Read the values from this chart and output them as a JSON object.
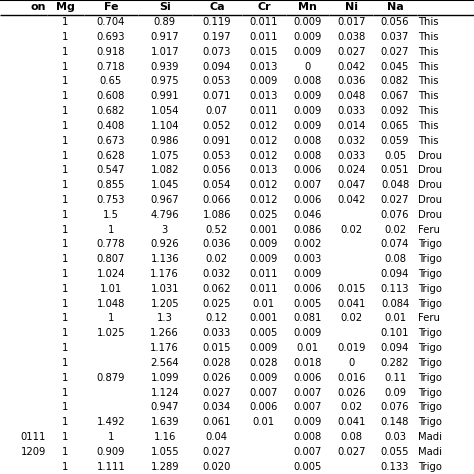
{
  "headers": [
    "on",
    "Mg",
    "Fe",
    "Si",
    "Ca",
    "Cr",
    "Mn",
    "Ni",
    "Na",
    ""
  ],
  "rows": [
    [
      "",
      "1",
      "0.704",
      "0.89",
      "0.119",
      "0.011",
      "0.009",
      "0.017",
      "0.056",
      "This"
    ],
    [
      "",
      "1",
      "0.693",
      "0.917",
      "0.197",
      "0.011",
      "0.009",
      "0.038",
      "0.037",
      "This"
    ],
    [
      "",
      "1",
      "0.918",
      "1.017",
      "0.073",
      "0.015",
      "0.009",
      "0.027",
      "0.027",
      "This"
    ],
    [
      "",
      "1",
      "0.718",
      "0.939",
      "0.094",
      "0.013",
      "0",
      "0.042",
      "0.045",
      "This"
    ],
    [
      "",
      "1",
      "0.65",
      "0.975",
      "0.053",
      "0.009",
      "0.008",
      "0.036",
      "0.082",
      "This"
    ],
    [
      "",
      "1",
      "0.608",
      "0.991",
      "0.071",
      "0.013",
      "0.009",
      "0.048",
      "0.067",
      "This"
    ],
    [
      "",
      "1",
      "0.682",
      "1.054",
      "0.07",
      "0.011",
      "0.009",
      "0.033",
      "0.092",
      "This"
    ],
    [
      "",
      "1",
      "0.408",
      "1.104",
      "0.052",
      "0.012",
      "0.009",
      "0.014",
      "0.065",
      "This"
    ],
    [
      "",
      "1",
      "0.673",
      "0.986",
      "0.091",
      "0.012",
      "0.008",
      "0.032",
      "0.059",
      "This"
    ],
    [
      "",
      "1",
      "0.628",
      "1.075",
      "0.053",
      "0.012",
      "0.008",
      "0.033",
      "0.05",
      "Drou"
    ],
    [
      "",
      "1",
      "0.547",
      "1.082",
      "0.056",
      "0.013",
      "0.006",
      "0.024",
      "0.051",
      "Drou"
    ],
    [
      "",
      "1",
      "0.855",
      "1.045",
      "0.054",
      "0.012",
      "0.007",
      "0.047",
      "0.048",
      "Drou"
    ],
    [
      "",
      "1",
      "0.753",
      "0.967",
      "0.066",
      "0.012",
      "0.006",
      "0.042",
      "0.027",
      "Drou"
    ],
    [
      "",
      "1",
      "1.5",
      "4.796",
      "1.086",
      "0.025",
      "0.046",
      "",
      "0.076",
      "Drou"
    ],
    [
      "",
      "1",
      "1",
      "3",
      "0.52",
      "0.001",
      "0.086",
      "0.02",
      "0.02",
      "Feru"
    ],
    [
      "",
      "1",
      "0.778",
      "0.926",
      "0.036",
      "0.009",
      "0.002",
      "",
      "0.074",
      "Trigo"
    ],
    [
      "",
      "1",
      "0.807",
      "1.136",
      "0.02",
      "0.009",
      "0.003",
      "",
      "0.08",
      "Trigo"
    ],
    [
      "",
      "1",
      "1.024",
      "1.176",
      "0.032",
      "0.011",
      "0.009",
      "",
      "0.094",
      "Trigo"
    ],
    [
      "",
      "1",
      "1.01",
      "1.031",
      "0.062",
      "0.011",
      "0.006",
      "0.015",
      "0.113",
      "Trigo"
    ],
    [
      "",
      "1",
      "1.048",
      "1.205",
      "0.025",
      "0.01",
      "0.005",
      "0.041",
      "0.084",
      "Trigo"
    ],
    [
      "",
      "1",
      "1",
      "1.3",
      "0.12",
      "0.001",
      "0.081",
      "0.02",
      "0.01",
      "Feru"
    ],
    [
      "",
      "1",
      "1.025",
      "1.266",
      "0.033",
      "0.005",
      "0.009",
      "",
      "0.101",
      "Trigo"
    ],
    [
      "",
      "1",
      "",
      "1.176",
      "0.015",
      "0.009",
      "0.01",
      "0.019",
      "0.094",
      "Trigo"
    ],
    [
      "",
      "1",
      "",
      "2.564",
      "0.028",
      "0.028",
      "0.018",
      "0",
      "0.282",
      "Trigo"
    ],
    [
      "",
      "1",
      "0.879",
      "1.099",
      "0.026",
      "0.009",
      "0.006",
      "0.016",
      "0.11",
      "Trigo"
    ],
    [
      "",
      "1",
      "",
      "1.124",
      "0.027",
      "0.007",
      "0.007",
      "0.026",
      "0.09",
      "Trigo"
    ],
    [
      "",
      "1",
      "",
      "0.947",
      "0.034",
      "0.006",
      "0.007",
      "0.02",
      "0.076",
      "Trigo"
    ],
    [
      "",
      "1",
      "1.492",
      "1.639",
      "0.061",
      "0.01",
      "0.009",
      "0.041",
      "0.148",
      "Trigo"
    ],
    [
      "0111",
      "1",
      "1",
      "1.16",
      "0.04",
      "",
      "0.008",
      "0.08",
      "0.03",
      "Madi"
    ],
    [
      "1209",
      "1",
      "0.909",
      "1.055",
      "0.027",
      "",
      "0.007",
      "0.027",
      "0.055",
      "Madi"
    ],
    [
      "",
      "1",
      "1.111",
      "1.289",
      "0.020",
      "",
      "0.005",
      "",
      "0.133",
      "Trigo"
    ]
  ],
  "col_widths": [
    0.07,
    0.055,
    0.08,
    0.08,
    0.075,
    "0.065",
    "0.065",
    "0.065",
    "0.065",
    0.085
  ],
  "font_size": 7.2,
  "header_font_size": 8.0,
  "bg_color": "#ffffff",
  "text_color": "#000000",
  "header_line_color": "#000000",
  "top_line_color": "#000000"
}
